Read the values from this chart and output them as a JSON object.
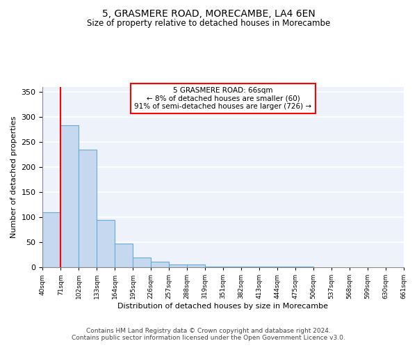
{
  "title": "5, GRASMERE ROAD, MORECAMBE, LA4 6EN",
  "subtitle": "Size of property relative to detached houses in Morecambe",
  "xlabel": "Distribution of detached houses by size in Morecambe",
  "ylabel": "Number of detached properties",
  "footer_line1": "Contains HM Land Registry data © Crown copyright and database right 2024.",
  "footer_line2": "Contains public sector information licensed under the Open Government Licence v3.0.",
  "bin_labels": [
    "40sqm",
    "71sqm",
    "102sqm",
    "133sqm",
    "164sqm",
    "195sqm",
    "226sqm",
    "257sqm",
    "288sqm",
    "319sqm",
    "351sqm",
    "382sqm",
    "413sqm",
    "444sqm",
    "475sqm",
    "506sqm",
    "537sqm",
    "568sqm",
    "599sqm",
    "630sqm",
    "661sqm"
  ],
  "bar_values": [
    110,
    283,
    235,
    95,
    48,
    20,
    11,
    5,
    5,
    2,
    2,
    1,
    1,
    1,
    1,
    0,
    0,
    0,
    0,
    0
  ],
  "bar_color": "#c5d8f0",
  "bar_edge_color": "#6aabd2",
  "red_line_x": 1,
  "annotation_line1": "5 GRASMERE ROAD: 66sqm",
  "annotation_line2": "← 8% of detached houses are smaller (60)",
  "annotation_line3": "91% of semi-detached houses are larger (726) →",
  "annotation_box_color": "white",
  "annotation_box_edge_color": "red",
  "ylim": [
    0,
    360
  ],
  "yticks": [
    0,
    50,
    100,
    150,
    200,
    250,
    300,
    350
  ],
  "background_color": "#edf2fb",
  "grid_color": "white",
  "title_fontsize": 10,
  "subtitle_fontsize": 8.5
}
